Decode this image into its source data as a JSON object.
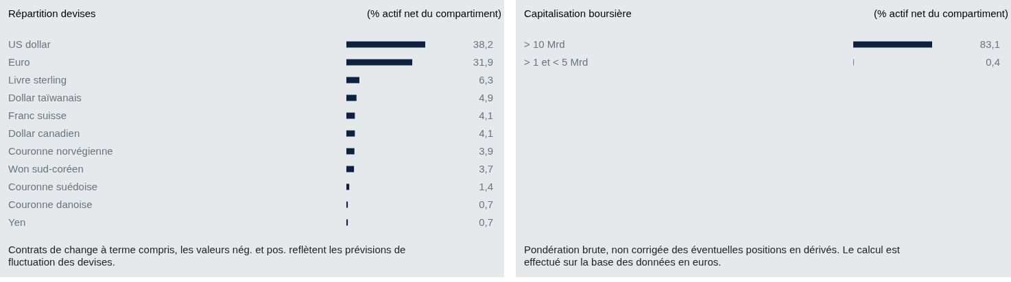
{
  "chart_data": [
    {
      "type": "bar",
      "orientation": "horizontal",
      "title": "Répartition devises",
      "subtitle": "(% actif net du compartiment)",
      "categories": [
        "US dollar",
        "Euro",
        "Livre sterling",
        "Dollar taïwanais",
        "Franc suisse",
        "Dollar canadien",
        "Couronne norvégienne",
        "Won sud-coréen",
        "Couronne suédoise",
        "Couronne danoise",
        "Yen"
      ],
      "values": [
        38.2,
        31.9,
        6.3,
        4.9,
        4.1,
        4.1,
        3.9,
        3.7,
        1.4,
        0.7,
        0.7
      ],
      "value_labels": [
        "38,2",
        "31,9",
        "6,3",
        "4,9",
        "4,1",
        "4,1",
        "3,9",
        "3,7",
        "1,4",
        "0,7",
        "0,7"
      ],
      "color": "#0d2240",
      "annotations": [
        "Contrats de change à terme compris, les valeurs nég. et pos. reflètent les prévisions de fluctuation des devises."
      ]
    },
    {
      "type": "bar",
      "orientation": "horizontal",
      "title": "Capitalisation boursière",
      "subtitle": "(% actif net du compartiment)",
      "categories": [
        "> 10 Mrd",
        "> 1 et < 5 Mrd"
      ],
      "values": [
        83.1,
        0.4
      ],
      "value_labels": [
        "83,1",
        "0,4"
      ],
      "color": "#0d2240",
      "annotations": [
        "Pondération brute, non corrigée des éventuelles positions en dérivés. Le calcul est effectué sur la base des données en euros."
      ]
    }
  ]
}
